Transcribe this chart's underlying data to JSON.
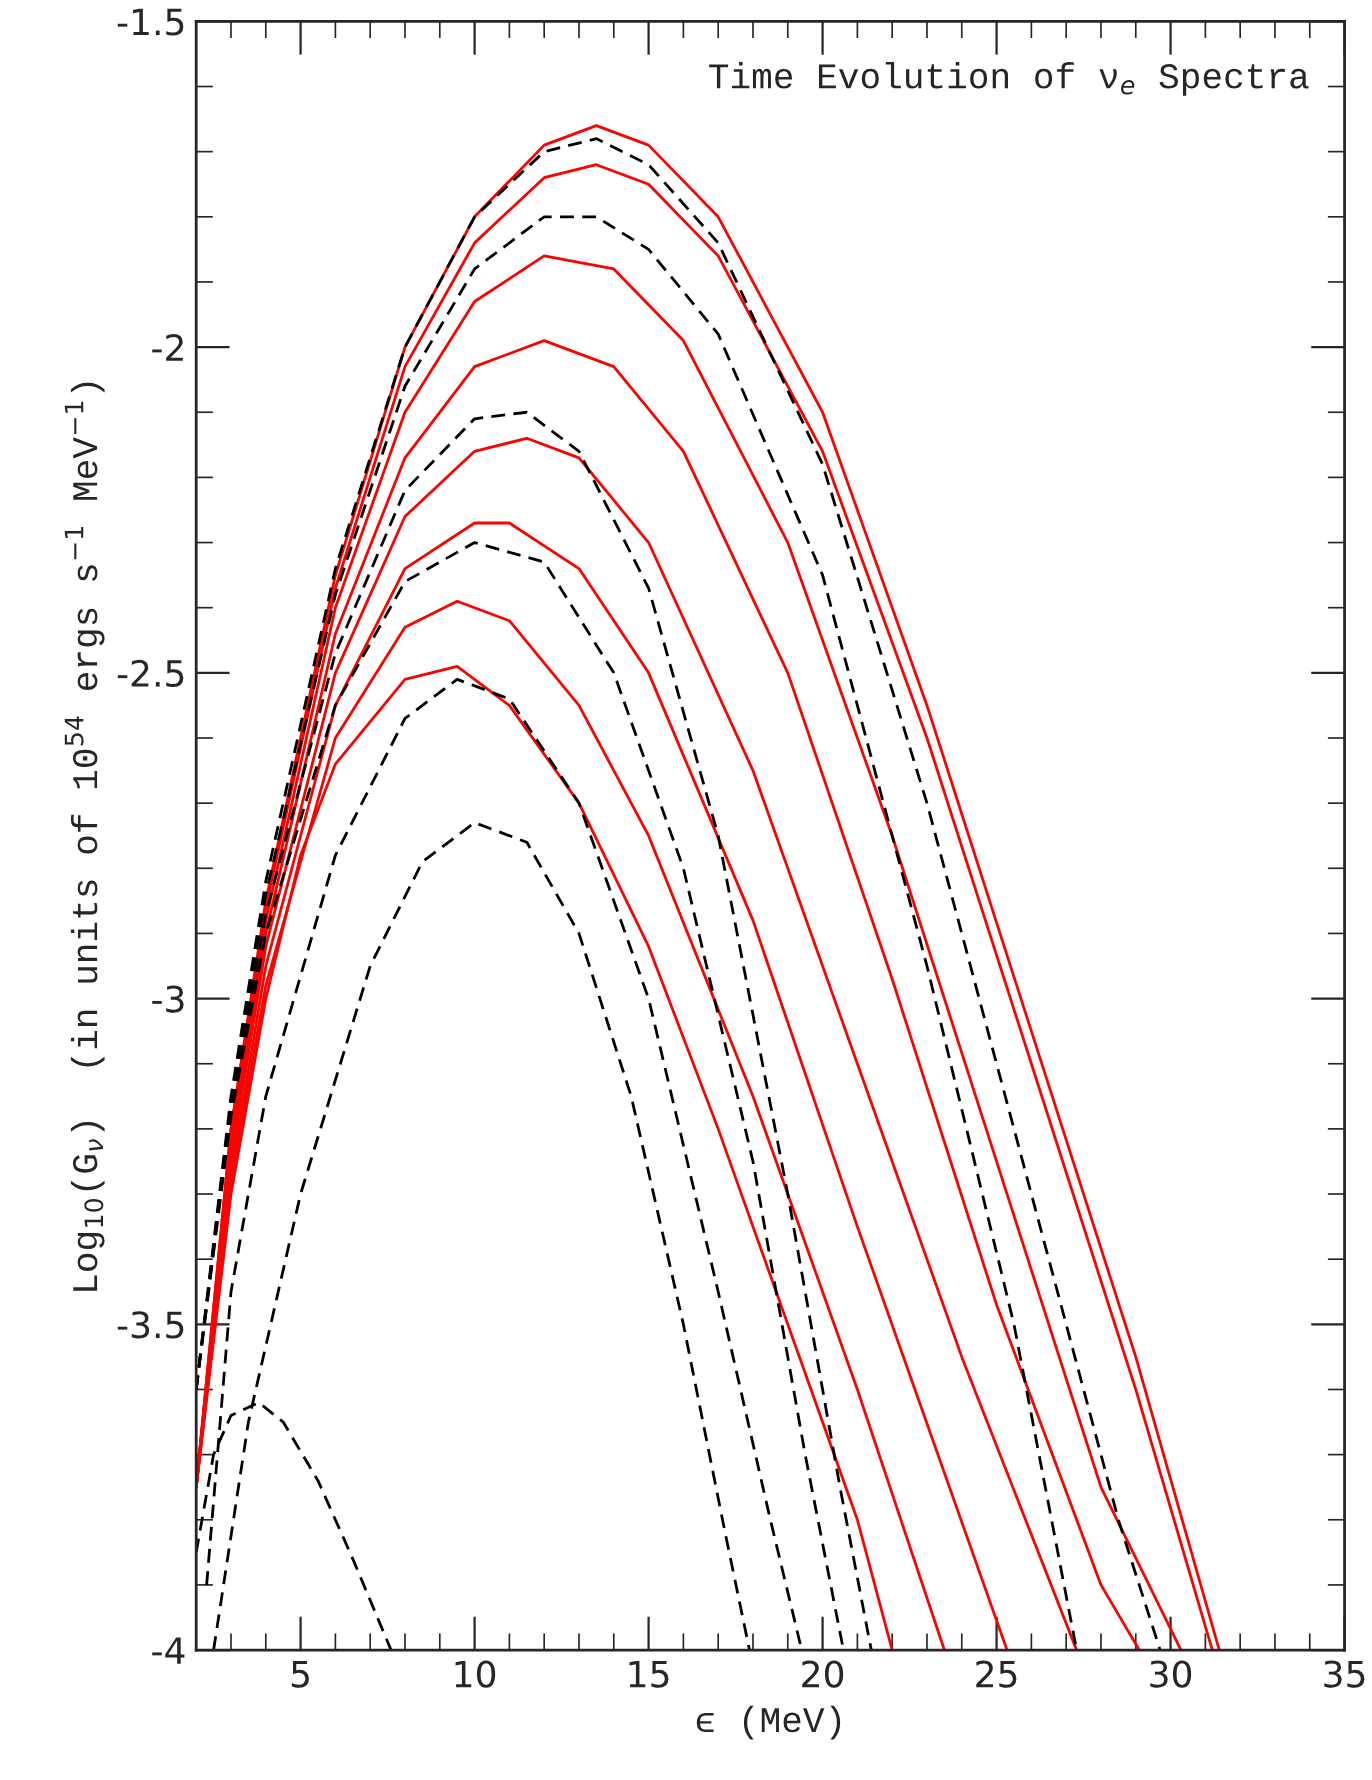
{
  "chart_data": {
    "type": "line",
    "title": "Time Evolution of ν$_{e}$ Spectra",
    "xlabel": "ϵ (MeV)",
    "ylabel": "Log$_{10}$(G$_{ν}$)  (in units of 10$^{54}$ ergs s$^{−1}$ MeV$^{−1}$)",
    "xlim": [
      2,
      35
    ],
    "xticks": [
      5,
      10,
      15,
      20,
      25,
      30,
      35
    ],
    "ylim": [
      -4,
      -1.5
    ],
    "yticks": [
      -4,
      -3.5,
      -3,
      -2.5,
      -2,
      -1.5
    ],
    "grid": false,
    "legend": false,
    "marker": "none",
    "series": [
      {
        "color": "#ff0000",
        "line_style": "solid",
        "x": [
          2,
          3,
          4,
          6,
          8,
          10,
          12,
          13.5,
          15,
          17,
          20,
          23,
          26,
          29,
          31.4
        ],
        "values": [
          -3.75,
          -3.2,
          -2.85,
          -2.35,
          -2.0,
          -1.8,
          -1.69,
          -1.66,
          -1.69,
          -1.8,
          -2.1,
          -2.55,
          -3.05,
          -3.55,
          -4
        ]
      },
      {
        "color": "#ff0000",
        "line_style": "solid",
        "x": [
          2,
          3,
          4,
          6,
          8,
          10,
          12,
          13.5,
          15,
          17,
          20,
          23,
          26,
          29,
          31.2
        ],
        "values": [
          -3.75,
          -3.2,
          -2.86,
          -2.37,
          -2.03,
          -1.84,
          -1.74,
          -1.72,
          -1.75,
          -1.86,
          -2.16,
          -2.6,
          -3.1,
          -3.6,
          -4
        ]
      },
      {
        "color": "#ff0000",
        "line_style": "solid",
        "x": [
          2,
          3,
          4,
          6,
          8,
          10,
          12,
          14,
          16,
          19,
          22,
          25,
          28,
          30.3
        ],
        "values": [
          -3.75,
          -3.22,
          -2.88,
          -2.4,
          -2.1,
          -1.93,
          -1.86,
          -1.88,
          -1.99,
          -2.3,
          -2.75,
          -3.25,
          -3.75,
          -4
        ]
      },
      {
        "color": "#ff0000",
        "line_style": "solid",
        "x": [
          2,
          3,
          4,
          6,
          8,
          10,
          12,
          14,
          16,
          19,
          22,
          25,
          28,
          29.1
        ],
        "values": [
          -3.75,
          -3.23,
          -2.9,
          -2.44,
          -2.17,
          -2.03,
          -1.99,
          -2.03,
          -2.16,
          -2.5,
          -2.97,
          -3.47,
          -3.9,
          -4
        ]
      },
      {
        "color": "#ff0000",
        "line_style": "solid",
        "x": [
          2,
          3,
          4,
          6,
          8,
          10,
          11.5,
          13,
          15,
          18,
          21,
          24,
          27.3
        ],
        "values": [
          -3.75,
          -3.25,
          -2.92,
          -2.5,
          -2.26,
          -2.16,
          -2.14,
          -2.17,
          -2.3,
          -2.65,
          -3.1,
          -3.55,
          -4
        ]
      },
      {
        "color": "#ff0000",
        "line_style": "solid",
        "x": [
          2,
          3,
          4,
          6,
          8,
          10,
          11,
          13,
          15,
          18,
          21,
          25.3
        ],
        "values": [
          -3.75,
          -3.27,
          -2.95,
          -2.55,
          -2.34,
          -2.27,
          -2.27,
          -2.34,
          -2.5,
          -2.88,
          -3.35,
          -4
        ]
      },
      {
        "color": "#ff0000",
        "line_style": "solid",
        "x": [
          2,
          3,
          4,
          6,
          8,
          9.5,
          11,
          13,
          15,
          18,
          21,
          23.5
        ],
        "values": [
          -3.75,
          -3.28,
          -2.98,
          -2.6,
          -2.43,
          -2.39,
          -2.42,
          -2.55,
          -2.75,
          -3.15,
          -3.6,
          -4
        ]
      },
      {
        "color": "#ff0000",
        "line_style": "solid",
        "x": [
          2,
          3,
          4,
          5,
          6,
          8,
          9.5,
          11,
          13,
          15,
          17,
          19,
          21,
          22
        ],
        "values": [
          -3.75,
          -3.3,
          -3.0,
          -2.78,
          -2.64,
          -2.51,
          -2.49,
          -2.55,
          -2.7,
          -2.92,
          -3.2,
          -3.5,
          -3.8,
          -4
        ]
      },
      {
        "color": "#000000",
        "line_style": "dashed",
        "x": [
          2,
          3,
          4,
          6,
          8,
          10,
          12,
          13.5,
          15,
          17,
          20,
          23,
          26,
          28.5,
          29.7
        ],
        "values": [
          -3.6,
          -3.15,
          -2.82,
          -2.34,
          -2.0,
          -1.8,
          -1.7,
          -1.68,
          -1.72,
          -1.84,
          -2.18,
          -2.7,
          -3.3,
          -3.8,
          -4
        ]
      },
      {
        "color": "#000000",
        "line_style": "dashed",
        "x": [
          2,
          3,
          4,
          6,
          8,
          10,
          12,
          13.5,
          15,
          17,
          20,
          23,
          25.5,
          27.3
        ],
        "values": [
          -3.6,
          -3.16,
          -2.84,
          -2.38,
          -2.06,
          -1.88,
          -1.8,
          -1.8,
          -1.85,
          -1.98,
          -2.35,
          -2.95,
          -3.5,
          -4
        ]
      },
      {
        "color": "#000000",
        "line_style": "dashed",
        "x": [
          2,
          3,
          4,
          6,
          8,
          10,
          11.5,
          13,
          15,
          17,
          19,
          20.5,
          21.4
        ],
        "values": [
          -3.6,
          -3.17,
          -2.87,
          -2.47,
          -2.22,
          -2.11,
          -2.1,
          -2.16,
          -2.37,
          -2.75,
          -3.3,
          -3.75,
          -4
        ]
      },
      {
        "color": "#000000",
        "line_style": "dashed",
        "x": [
          2,
          3,
          4,
          6,
          8,
          10,
          12,
          14,
          16,
          18,
          19.5,
          20.6
        ],
        "values": [
          -3.6,
          -3.18,
          -2.9,
          -2.55,
          -2.36,
          -2.3,
          -2.33,
          -2.5,
          -2.8,
          -3.25,
          -3.7,
          -4
        ]
      },
      {
        "color": "#000000",
        "line_style": "dashed",
        "x": [
          2.3,
          3,
          4,
          6,
          8,
          9.5,
          11,
          13,
          15,
          17,
          18.5,
          19.4
        ],
        "values": [
          -3.9,
          -3.45,
          -3.15,
          -2.78,
          -2.57,
          -2.51,
          -2.54,
          -2.7,
          -3.0,
          -3.45,
          -3.8,
          -4
        ]
      },
      {
        "color": "#000000",
        "line_style": "dashed",
        "x": [
          2.5,
          3.5,
          5,
          7,
          8.5,
          10,
          11.5,
          13,
          14.5,
          16,
          17.2,
          17.9
        ],
        "values": [
          -4,
          -3.65,
          -3.3,
          -2.95,
          -2.79,
          -2.73,
          -2.76,
          -2.9,
          -3.15,
          -3.5,
          -3.82,
          -4
        ]
      },
      {
        "color": "#000000",
        "line_style": "dashed",
        "x": [
          2,
          2.5,
          3,
          3.8,
          4.5,
          5.5,
          6.5,
          7.6
        ],
        "values": [
          -3.85,
          -3.7,
          -3.64,
          -3.62,
          -3.65,
          -3.74,
          -3.86,
          -4
        ]
      }
    ]
  }
}
